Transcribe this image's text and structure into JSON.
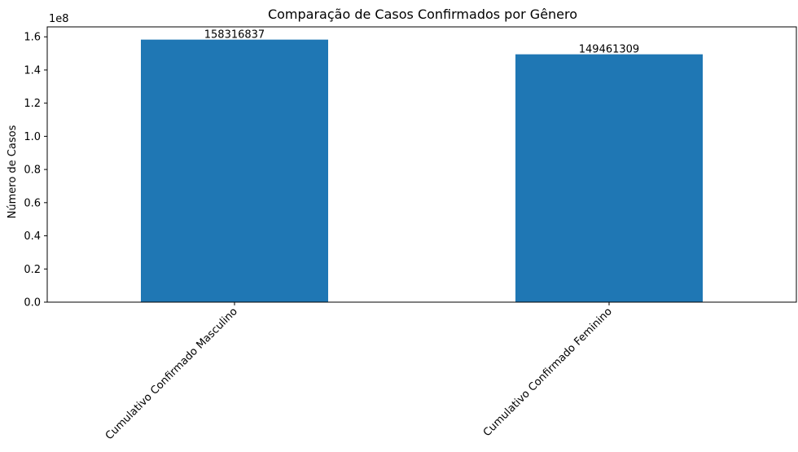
{
  "chart_data": {
    "type": "bar",
    "title": "Comparação de Casos Confirmados por Gênero",
    "ylabel": "Número de Casos",
    "xlabel": "",
    "y_offset_label": "1e8",
    "categories": [
      "Cumulativo Confirmado Masculino",
      "Cumulativo Confirmado Feminino"
    ],
    "values": [
      158316837,
      149461309
    ],
    "value_labels": [
      "158316837",
      "149461309"
    ],
    "ylim": [
      0,
      166000000
    ],
    "yticks": [
      0,
      20000000,
      40000000,
      60000000,
      80000000,
      100000000,
      120000000,
      140000000,
      160000000
    ],
    "ytick_labels": [
      "0.0",
      "0.2",
      "0.4",
      "0.6",
      "0.8",
      "1.0",
      "1.2",
      "1.4",
      "1.6"
    ],
    "bar_color": "#1f77b4",
    "grid": false,
    "legend": null
  }
}
